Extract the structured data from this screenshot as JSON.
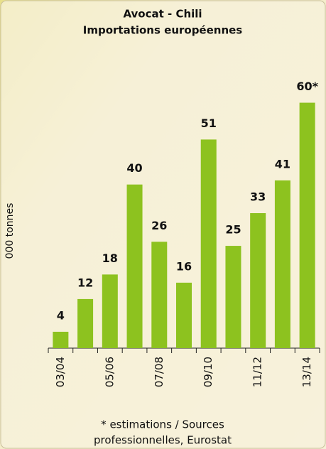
{
  "chart_data": {
    "type": "bar",
    "title": "Avocat - Chili",
    "subtitle": "Importations européennes",
    "y_label": "000 tonnes",
    "categories": [
      "03/04",
      null,
      "05/06",
      null,
      "07/08",
      null,
      "09/10",
      null,
      "11/12",
      null,
      "13/14"
    ],
    "values": [
      4,
      12,
      18,
      40,
      26,
      16,
      51,
      25,
      33,
      41,
      60
    ],
    "value_labels": [
      "4",
      "12",
      "18",
      "40",
      "26",
      "16",
      "51",
      "25",
      "33",
      "41",
      "60*"
    ],
    "color": "#8dc21f",
    "ylim": [
      0,
      70
    ],
    "footnote": [
      "* estimations / Sources",
      "professionnelles, Eurostat"
    ]
  }
}
